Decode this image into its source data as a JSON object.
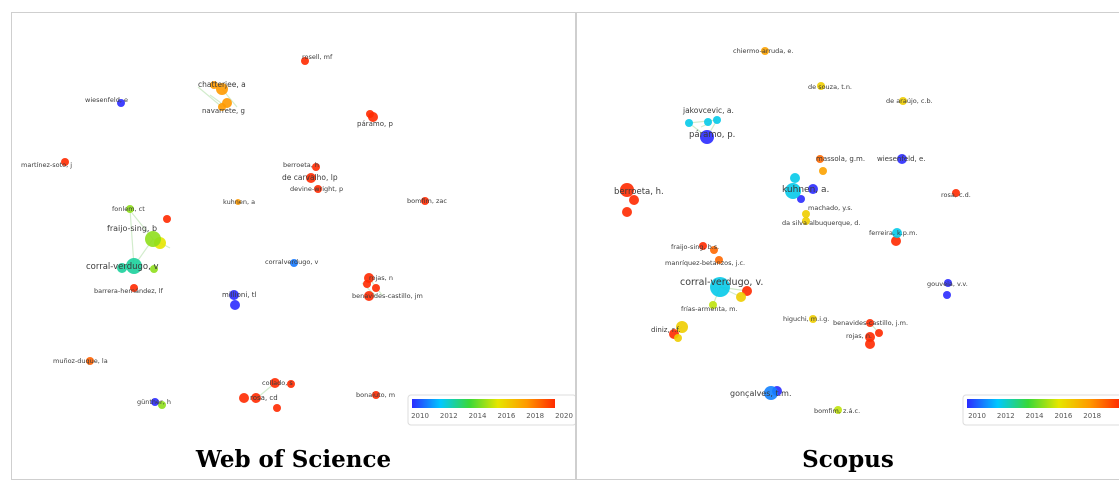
{
  "panels": [
    {
      "caption": "Web of Science",
      "nodes": [
        {
          "label": "rosell, mf",
          "year": 2020
        },
        {
          "label": "chatterjee, a",
          "year": 2018
        },
        {
          "label": "navarrete, g",
          "year": 2018
        },
        {
          "label": "wiesenfeld, e",
          "year": 2010
        },
        {
          "label": "páramo, p",
          "year": 2020
        },
        {
          "label": "martínez-soto, j",
          "year": 2020
        },
        {
          "label": "berroeta, h",
          "year": 2020
        },
        {
          "label": "de carvalho, lp",
          "year": 2020
        },
        {
          "label": "devine-wright, p",
          "year": 2020
        },
        {
          "label": "kuhnen, a",
          "year": 2018
        },
        {
          "label": "bomfim, zac",
          "year": 2020
        },
        {
          "label": "fonlem, ct",
          "year": 2015
        },
        {
          "label": "fraijo-sing, b",
          "year": 2015
        },
        {
          "label": "corral-verdugo, v",
          "year": 2013
        },
        {
          "label": "corralverdugo, v",
          "year": 2011
        },
        {
          "label": "rojas, n",
          "year": 2020
        },
        {
          "label": "benavides-castillo, jm",
          "year": 2020
        },
        {
          "label": "barrera-hernández, lf",
          "year": 2020
        },
        {
          "label": "millioni, tl",
          "year": 2010
        },
        {
          "label": "muñoz-duque, la",
          "year": 2019
        },
        {
          "label": "collado, s",
          "year": 2020
        },
        {
          "label": "rosa, cd",
          "year": 2020
        },
        {
          "label": "bonaiuto, m",
          "year": 2020
        },
        {
          "label": "günther, h",
          "year": 2010
        }
      ],
      "legend": {
        "ticks": [
          "2010",
          "2012",
          "2014",
          "2016",
          "2018",
          "2020"
        ]
      }
    },
    {
      "caption": "Scopus",
      "nodes": [
        {
          "label": "chiermo-arruda, e.",
          "year": 2017
        },
        {
          "label": "de souza, t.n.",
          "year": 2016
        },
        {
          "label": "de araújo, c.b.",
          "year": 2016
        },
        {
          "label": "jakovcevic, a.",
          "year": 2012
        },
        {
          "label": "páramo, p.",
          "year": 2010
        },
        {
          "label": "massola, g.m.",
          "year": 2018
        },
        {
          "label": "wiesenfeld, e.",
          "year": 2010
        },
        {
          "label": "berroeta, h.",
          "year": 2019
        },
        {
          "label": "kuhnen, a.",
          "year": 2012
        },
        {
          "label": "rosa, c.d.",
          "year": 2019
        },
        {
          "label": "machado, y.s.",
          "year": 2016
        },
        {
          "label": "da silva albuquerque, d.",
          "year": 2016
        },
        {
          "label": "ferreira, k.p.m.",
          "year": 2012
        },
        {
          "label": "fraijo-sing, b.s.",
          "year": 2018
        },
        {
          "label": "manríquez-betanzos, j.c.",
          "year": 2018
        },
        {
          "label": "corral-verdugo, v.",
          "year": 2012
        },
        {
          "label": "gouveia, v.v.",
          "year": 2010
        },
        {
          "label": "frías-armenta, m.",
          "year": 2015
        },
        {
          "label": "higuchi, m.i.g.",
          "year": 2016
        },
        {
          "label": "benavides-castillo, j.m.",
          "year": 2019
        },
        {
          "label": "diniz, r.f.",
          "year": 2016
        },
        {
          "label": "rojas, n.",
          "year": 2019
        },
        {
          "label": "gonçalves, t.m.",
          "year": 2011
        },
        {
          "label": "bomfim, z.á.c.",
          "year": 2015
        }
      ],
      "legend": {
        "ticks": [
          "2010",
          "2012",
          "2014",
          "2016",
          "2018"
        ]
      }
    }
  ],
  "colors": {
    "gradient": [
      "#2b2bff",
      "#00c8ff",
      "#38d838",
      "#e6e600",
      "#ff9a00",
      "#ff2a00"
    ]
  }
}
